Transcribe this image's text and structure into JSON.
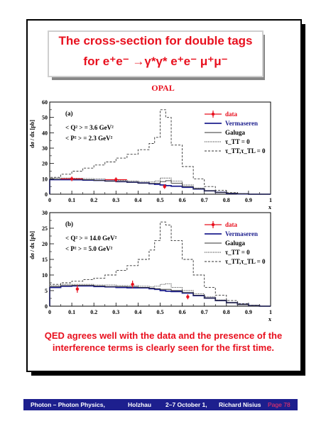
{
  "title": {
    "line1": "The cross-section for double tags",
    "line2": "for e⁺e⁻ →γ*γ* e⁺e⁻ μ⁺μ⁻"
  },
  "experiment": "OPAL",
  "caption": "QED agrees well with the data and the presence of the interference terms is clearly seen for the first time.",
  "footer": {
    "conference": "Photon – Photon Physics,",
    "place": "Holzhau",
    "dates": "2–7 October 1,",
    "author": "Richard Nisius",
    "page": "Page 78"
  },
  "colors": {
    "accent": "#e8101e",
    "data": "#e8101e",
    "vermaseren": "#1d1f8e",
    "footer_bg": "#1d1f8e"
  },
  "chart_data": [
    {
      "type": "line",
      "panel": "(a)",
      "annotations": [
        "< Q² > = 3.6 GeV²",
        "< P² > = 2.3 GeV²"
      ],
      "xlabel": "x",
      "ylabel": "dσ / dx [pb]",
      "xlim": [
        0,
        1
      ],
      "ylim": [
        0,
        60
      ],
      "xticks": [
        "0",
        "0.1",
        "0.2",
        "0.3",
        "0.4",
        "0.5",
        "0.6",
        "0.7",
        "0.8",
        "0.9",
        "1"
      ],
      "yticks": [
        "0",
        "10",
        "20",
        "30",
        "40",
        "50",
        "60"
      ],
      "legend": [
        "data",
        "Vermaseren",
        "Galuga",
        "τ_TT = 0",
        "τ_TT,τ_TL = 0"
      ],
      "legend_position": "top-right",
      "bin_edges": [
        0,
        0.05,
        0.1,
        0.15,
        0.2,
        0.25,
        0.3,
        0.35,
        0.4,
        0.45,
        0.475,
        0.5,
        0.525,
        0.55,
        0.6,
        0.65,
        0.7,
        0.75,
        0.8,
        0.85,
        0.9,
        0.95,
        1
      ],
      "data": {
        "x": [
          0.1,
          0.3,
          0.52
        ],
        "y": [
          10,
          9.5,
          5
        ],
        "yerr": [
          1.5,
          1.5,
          1.5
        ],
        "xerr": [
          0.05,
          0.05,
          0
        ]
      },
      "series": [
        {
          "name": "Vermaseren",
          "values": [
            9.5,
            9.5,
            9.4,
            9.2,
            9.0,
            8.6,
            8.2,
            7.8,
            7.3,
            6.8,
            6.4,
            6.0,
            5.6,
            5.2,
            4.5,
            3.4,
            2.2,
            1.2,
            0.5,
            0.2,
            0,
            0
          ]
        },
        {
          "name": "Galuga",
          "values": [
            9.8,
            10.0,
            9.8,
            9.4,
            9.0,
            8.6,
            8.3,
            7.8,
            7.3,
            7.0,
            7.2,
            8.2,
            8.8,
            7.2,
            5.0,
            3.6,
            2.2,
            1.2,
            0.6,
            0.2,
            0,
            0
          ]
        },
        {
          "name": "τ_TT = 0",
          "values": [
            10.5,
            10.5,
            10.4,
            10.2,
            10.0,
            9.5,
            9.0,
            8.6,
            8.2,
            8.0,
            8.6,
            10.5,
            10.5,
            8.5,
            6.0,
            4.0,
            2.4,
            1.3,
            0.6,
            0.2,
            0,
            0
          ]
        },
        {
          "name": "τ_TT,τ_TL = 0",
          "values": [
            11,
            13,
            15,
            17,
            19,
            21,
            23.5,
            26,
            29,
            33,
            37,
            55,
            50,
            32,
            18,
            10,
            5,
            2.5,
            1,
            0.3,
            0,
            0
          ]
        }
      ]
    },
    {
      "type": "line",
      "panel": "(b)",
      "annotations": [
        "< Q² > = 14.0 GeV²",
        "< P² > =  5.0 GeV²"
      ],
      "xlabel": "x",
      "ylabel": "dσ / dx [pb]",
      "xlim": [
        0,
        1
      ],
      "ylim": [
        0,
        30
      ],
      "xticks": [
        "0",
        "0.1",
        "0.2",
        "0.3",
        "0.4",
        "0.5",
        "0.6",
        "0.7",
        "0.8",
        "0.9",
        "1"
      ],
      "yticks": [
        "0",
        "5",
        "10",
        "15",
        "20",
        "25",
        "30"
      ],
      "legend": [
        "data",
        "Vermaseren",
        "Galuga",
        "τ_TT = 0",
        "τ_TT,τ_TL = 0"
      ],
      "legend_position": "top-right",
      "bin_edges": [
        0,
        0.05,
        0.1,
        0.15,
        0.2,
        0.25,
        0.3,
        0.35,
        0.4,
        0.45,
        0.475,
        0.5,
        0.525,
        0.55,
        0.6,
        0.65,
        0.7,
        0.75,
        0.8,
        0.85,
        0.9,
        0.95,
        1
      ],
      "data": {
        "x": [
          0.125,
          0.375,
          0.625
        ],
        "y": [
          5.5,
          7,
          3
        ],
        "yerr": [
          1.2,
          1.2,
          0.8
        ],
        "xerr": [
          0,
          0,
          0
        ]
      },
      "series": [
        {
          "name": "Vermaseren",
          "values": [
            6.0,
            6.4,
            6.5,
            6.5,
            6.3,
            6.2,
            6.0,
            5.9,
            5.9,
            5.6,
            5.4,
            5.0,
            4.8,
            4.7,
            4.2,
            3.4,
            2.6,
            1.8,
            1.1,
            0.6,
            0.2,
            0
          ]
        },
        {
          "name": "Galuga",
          "values": [
            6.3,
            6.6,
            6.7,
            6.7,
            6.5,
            6.3,
            6.3,
            6.2,
            6.0,
            5.8,
            5.6,
            5.4,
            5.4,
            5.0,
            4.4,
            3.5,
            2.6,
            1.8,
            1.1,
            0.5,
            0.2,
            0
          ]
        },
        {
          "name": "τ_TT = 0",
          "values": [
            6.6,
            7.0,
            7.0,
            7.0,
            6.8,
            6.8,
            6.6,
            6.6,
            6.4,
            6.2,
            6.4,
            7.0,
            7.2,
            6.0,
            5.0,
            4.0,
            3.0,
            2.0,
            1.2,
            0.6,
            0.2,
            0
          ]
        },
        {
          "name": "τ_TT,τ_TL = 0",
          "values": [
            7,
            7.5,
            8,
            8.5,
            9,
            10,
            11.5,
            13,
            15,
            18,
            21,
            27,
            26,
            21,
            15,
            10,
            6,
            3.5,
            1.8,
            0.8,
            0.3,
            0
          ]
        }
      ]
    }
  ]
}
